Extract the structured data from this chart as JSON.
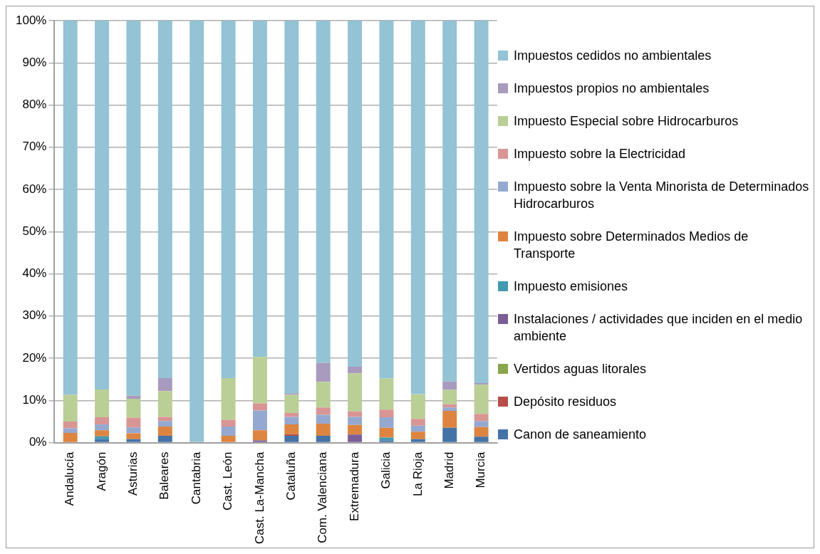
{
  "chart_data": {
    "type": "bar",
    "stacked": true,
    "categories": [
      "Andalucía",
      "Aragón",
      "Asturias",
      "Baleares",
      "Cantabria",
      "Cast. León",
      "Cast. La-Mancha",
      "Cataluña",
      "Com. Valenciana",
      "Extremadura",
      "Galicia",
      "La Rioja",
      "Madrid",
      "Murcia"
    ],
    "series": [
      {
        "name": "Canon de saneamiento",
        "color": "#4473a8",
        "values": [
          0,
          0.8,
          0.8,
          1.6,
          0,
          0,
          0,
          1.6,
          1.6,
          0,
          0.5,
          0.8,
          3.5,
          1.4
        ]
      },
      {
        "name": "Depósito residuos",
        "color": "#b84e48",
        "values": [
          0,
          0,
          0,
          0,
          0,
          0,
          0,
          0.4,
          0,
          0,
          0,
          0,
          0,
          0
        ]
      },
      {
        "name": "Vertidos aguas litorales",
        "color": "#8aa54c",
        "values": [
          0,
          0,
          0,
          0,
          0,
          0,
          0,
          0,
          0,
          0,
          0,
          0,
          0,
          0
        ]
      },
      {
        "name": "Instalaciones / actividades que inciden en el medio ambiente",
        "color": "#7b5e96",
        "values": [
          0,
          0,
          0,
          0,
          0,
          0,
          0.5,
          0,
          0,
          1.9,
          0,
          0,
          0,
          0
        ]
      },
      {
        "name": "Impuesto emisiones",
        "color": "#4298af",
        "values": [
          0,
          0.7,
          0,
          0,
          0,
          0,
          0,
          0,
          0,
          0,
          0.7,
          0,
          0,
          0
        ]
      },
      {
        "name": "Impuesto sobre Determinados Medios de Transporte",
        "color": "#dd8540",
        "values": [
          2.3,
          1.4,
          1.4,
          2.2,
          0,
          1.6,
          2.4,
          2.3,
          2.9,
          2.3,
          2.3,
          1.8,
          4.0,
          2.3
        ]
      },
      {
        "name": "Impuesto sobre la Venta Minorista de Determinados Hidrocarburos",
        "color": "#95a9d0",
        "values": [
          1.1,
          1.4,
          1.4,
          1.3,
          0,
          2.2,
          4.7,
          1.8,
          2.1,
          1.9,
          2.5,
          1.4,
          0.8,
          1.4
        ]
      },
      {
        "name": "Impuesto sobre la Electricidad",
        "color": "#d99594",
        "values": [
          1.6,
          1.7,
          2.3,
          1.0,
          0,
          1.6,
          1.7,
          0.9,
          1.7,
          1.3,
          1.8,
          1.6,
          0.8,
          1.7
        ]
      },
      {
        "name": "Impuesto Especial sobre Hidrocarburos",
        "color": "#b9cf96",
        "values": [
          6.3,
          6.6,
          4.5,
          6.1,
          0,
          9.9,
          11.0,
          4.3,
          6.1,
          9.0,
          7.4,
          5.9,
          3.4,
          6.9
        ]
      },
      {
        "name": "Impuestos propios no ambientales",
        "color": "#a99bbd",
        "values": [
          0,
          0,
          0.7,
          3.1,
          0,
          0,
          0,
          0.4,
          4.5,
          1.6,
          0,
          0,
          2.0,
          0.4
        ]
      },
      {
        "name": "Impuestos cedidos no ambientales",
        "color": "#93c3d5",
        "values": [
          88.7,
          87.4,
          88.9,
          84.7,
          100,
          84.7,
          79.7,
          88.3,
          81.1,
          82.0,
          84.8,
          88.5,
          85.5,
          85.9
        ]
      }
    ],
    "ylim": [
      0,
      100
    ],
    "yticks": [
      {
        "value": 0,
        "label": "0%"
      },
      {
        "value": 10,
        "label": "10%"
      },
      {
        "value": 20,
        "label": "20%"
      },
      {
        "value": 30,
        "label": "30%"
      },
      {
        "value": 40,
        "label": "40%"
      },
      {
        "value": 50,
        "label": "50%"
      },
      {
        "value": 60,
        "label": "60%"
      },
      {
        "value": 70,
        "label": "70%"
      },
      {
        "value": 80,
        "label": "80%"
      },
      {
        "value": 90,
        "label": "90%"
      },
      {
        "value": 100,
        "label": "100%"
      }
    ],
    "grid": "y",
    "legend": "right"
  }
}
